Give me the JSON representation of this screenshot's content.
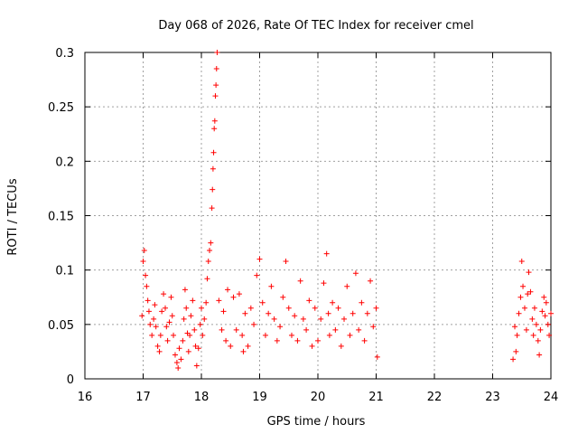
{
  "chart_data": {
    "type": "scatter",
    "title": "Day 068 of 2026, Rate Of TEC Index for receiver cmel",
    "xlabel": "GPS time / hours",
    "ylabel": "ROTI / TECUs",
    "xlim": [
      16,
      24
    ],
    "ylim": [
      0,
      0.3
    ],
    "xticks": [
      "16",
      "17",
      "18",
      "19",
      "20",
      "21",
      "22",
      "23",
      "24"
    ],
    "yticks": [
      "0",
      "0.05",
      "0.1",
      "0.15",
      "0.2",
      "0.25",
      "0.3"
    ],
    "grid": true,
    "marker": "+",
    "color": "#ff0000",
    "series": [
      {
        "name": "ROTI",
        "points": [
          [
            16.98,
            0.058
          ],
          [
            17.0,
            0.108
          ],
          [
            17.02,
            0.118
          ],
          [
            17.04,
            0.095
          ],
          [
            17.06,
            0.085
          ],
          [
            17.08,
            0.072
          ],
          [
            17.1,
            0.062
          ],
          [
            17.12,
            0.05
          ],
          [
            17.15,
            0.04
          ],
          [
            17.18,
            0.055
          ],
          [
            17.2,
            0.068
          ],
          [
            17.22,
            0.048
          ],
          [
            17.25,
            0.03
          ],
          [
            17.28,
            0.025
          ],
          [
            17.3,
            0.04
          ],
          [
            17.32,
            0.062
          ],
          [
            17.35,
            0.078
          ],
          [
            17.38,
            0.065
          ],
          [
            17.4,
            0.048
          ],
          [
            17.42,
            0.035
          ],
          [
            17.45,
            0.052
          ],
          [
            17.48,
            0.075
          ],
          [
            17.5,
            0.058
          ],
          [
            17.52,
            0.04
          ],
          [
            17.55,
            0.022
          ],
          [
            17.58,
            0.015
          ],
          [
            17.6,
            0.01
          ],
          [
            17.62,
            0.028
          ],
          [
            17.65,
            0.018
          ],
          [
            17.68,
            0.035
          ],
          [
            17.7,
            0.055
          ],
          [
            17.72,
            0.082
          ],
          [
            17.74,
            0.065
          ],
          [
            17.76,
            0.042
          ],
          [
            17.78,
            0.025
          ],
          [
            17.8,
            0.04
          ],
          [
            17.82,
            0.058
          ],
          [
            17.85,
            0.072
          ],
          [
            17.88,
            0.045
          ],
          [
            17.9,
            0.03
          ],
          [
            17.92,
            0.012
          ],
          [
            17.95,
            0.028
          ],
          [
            17.98,
            0.05
          ],
          [
            18.0,
            0.065
          ],
          [
            18.02,
            0.04
          ],
          [
            18.05,
            0.055
          ],
          [
            18.08,
            0.07
          ],
          [
            18.1,
            0.092
          ],
          [
            18.12,
            0.108
          ],
          [
            18.14,
            0.118
          ],
          [
            18.16,
            0.125
          ],
          [
            18.18,
            0.157
          ],
          [
            18.19,
            0.174
          ],
          [
            18.2,
            0.193
          ],
          [
            18.21,
            0.208
          ],
          [
            18.22,
            0.23
          ],
          [
            18.23,
            0.237
          ],
          [
            18.24,
            0.26
          ],
          [
            18.25,
            0.27
          ],
          [
            18.26,
            0.285
          ],
          [
            18.27,
            0.3
          ],
          [
            18.3,
            0.072
          ],
          [
            18.35,
            0.045
          ],
          [
            18.38,
            0.062
          ],
          [
            18.42,
            0.035
          ],
          [
            18.45,
            0.082
          ],
          [
            18.5,
            0.03
          ],
          [
            18.55,
            0.075
          ],
          [
            18.6,
            0.045
          ],
          [
            18.65,
            0.078
          ],
          [
            18.7,
            0.04
          ],
          [
            18.72,
            0.025
          ],
          [
            18.75,
            0.06
          ],
          [
            18.8,
            0.03
          ],
          [
            18.85,
            0.065
          ],
          [
            18.9,
            0.05
          ],
          [
            18.95,
            0.095
          ],
          [
            19.0,
            0.11
          ],
          [
            19.05,
            0.07
          ],
          [
            19.1,
            0.04
          ],
          [
            19.15,
            0.06
          ],
          [
            19.2,
            0.085
          ],
          [
            19.25,
            0.055
          ],
          [
            19.3,
            0.035
          ],
          [
            19.35,
            0.048
          ],
          [
            19.4,
            0.075
          ],
          [
            19.45,
            0.108
          ],
          [
            19.5,
            0.065
          ],
          [
            19.55,
            0.04
          ],
          [
            19.6,
            0.058
          ],
          [
            19.65,
            0.035
          ],
          [
            19.7,
            0.09
          ],
          [
            19.75,
            0.055
          ],
          [
            19.8,
            0.045
          ],
          [
            19.85,
            0.072
          ],
          [
            19.9,
            0.03
          ],
          [
            19.95,
            0.065
          ],
          [
            20.0,
            0.035
          ],
          [
            20.05,
            0.055
          ],
          [
            20.1,
            0.088
          ],
          [
            20.15,
            0.115
          ],
          [
            20.18,
            0.06
          ],
          [
            20.2,
            0.04
          ],
          [
            20.25,
            0.07
          ],
          [
            20.3,
            0.045
          ],
          [
            20.35,
            0.065
          ],
          [
            20.4,
            0.03
          ],
          [
            20.45,
            0.055
          ],
          [
            20.5,
            0.085
          ],
          [
            20.55,
            0.04
          ],
          [
            20.6,
            0.06
          ],
          [
            20.65,
            0.097
          ],
          [
            20.7,
            0.045
          ],
          [
            20.75,
            0.07
          ],
          [
            20.8,
            0.035
          ],
          [
            20.85,
            0.06
          ],
          [
            20.9,
            0.09
          ],
          [
            20.95,
            0.048
          ],
          [
            21.0,
            0.065
          ],
          [
            21.02,
            0.02
          ],
          [
            23.35,
            0.018
          ],
          [
            23.38,
            0.048
          ],
          [
            23.4,
            0.025
          ],
          [
            23.42,
            0.04
          ],
          [
            23.45,
            0.06
          ],
          [
            23.48,
            0.075
          ],
          [
            23.5,
            0.108
          ],
          [
            23.52,
            0.085
          ],
          [
            23.55,
            0.065
          ],
          [
            23.58,
            0.045
          ],
          [
            23.6,
            0.078
          ],
          [
            23.62,
            0.098
          ],
          [
            23.65,
            0.08
          ],
          [
            23.68,
            0.055
          ],
          [
            23.7,
            0.04
          ],
          [
            23.72,
            0.065
          ],
          [
            23.75,
            0.05
          ],
          [
            23.78,
            0.035
          ],
          [
            23.8,
            0.022
          ],
          [
            23.82,
            0.045
          ],
          [
            23.85,
            0.062
          ],
          [
            23.88,
            0.075
          ],
          [
            23.9,
            0.058
          ],
          [
            23.92,
            0.07
          ],
          [
            23.95,
            0.05
          ],
          [
            23.97,
            0.04
          ],
          [
            24.0,
            0.06
          ]
        ]
      }
    ]
  }
}
